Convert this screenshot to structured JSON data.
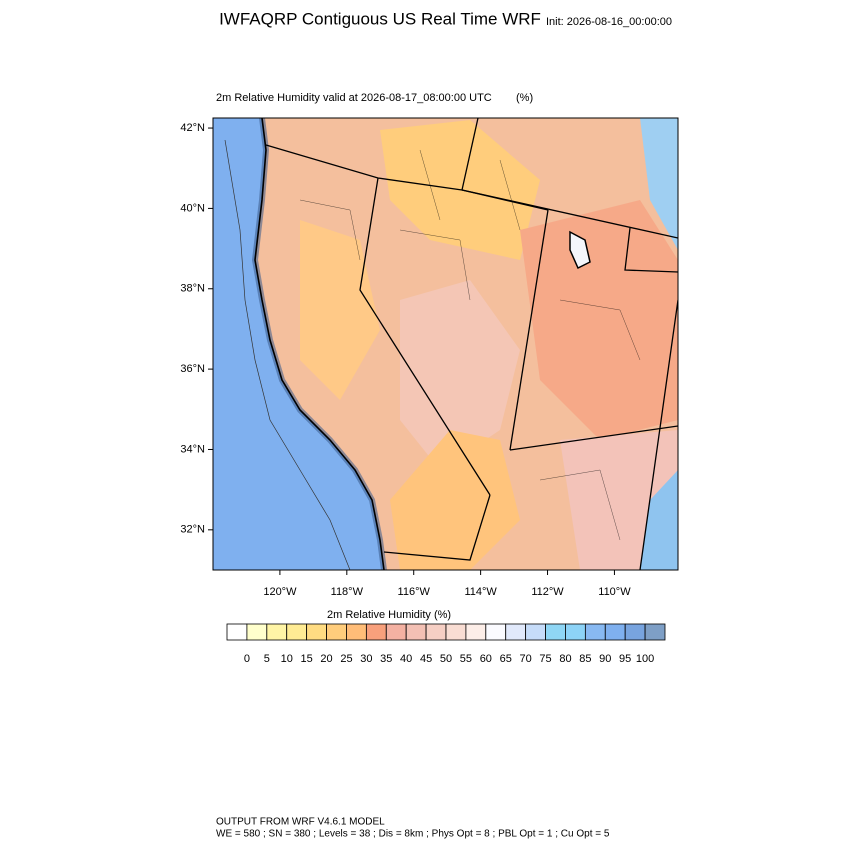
{
  "title": "IWFAQRP Contiguous US Real Time WRF",
  "init": "Init: 2026-08-16_00:00:00",
  "subtitle": "2m Relative Humidity valid at 2026-08-17_08:00:00 UTC",
  "units": "(%)",
  "map": {
    "lat_range": [
      31,
      42.25
    ],
    "lon_range": [
      -122,
      -108.1
    ],
    "lat_ticks": [
      {
        "value": 32,
        "label": "32°N"
      },
      {
        "value": 34,
        "label": "34°N"
      },
      {
        "value": 36,
        "label": "36°N"
      },
      {
        "value": 38,
        "label": "38°N"
      },
      {
        "value": 40,
        "label": "40°N"
      },
      {
        "value": 42,
        "label": "42°N"
      }
    ],
    "lon_ticks": [
      {
        "value": -120,
        "label": "120°W"
      },
      {
        "value": -118,
        "label": "118°W"
      },
      {
        "value": -116,
        "label": "116°W"
      },
      {
        "value": -114,
        "label": "114°W"
      },
      {
        "value": -112,
        "label": "112°W"
      },
      {
        "value": -110,
        "label": "110°W"
      }
    ]
  },
  "colorbar": {
    "title": "2m Relative Humidity  (%)",
    "levels": [
      0,
      5,
      10,
      15,
      20,
      25,
      30,
      35,
      40,
      45,
      50,
      55,
      60,
      65,
      70,
      75,
      80,
      85,
      90,
      95,
      100
    ],
    "colors": [
      "#ffffff",
      "#ffffcc",
      "#fff5a6",
      "#ffec94",
      "#ffdc82",
      "#ffcd7c",
      "#ffbd78",
      "#f8a07c",
      "#f4b1a2",
      "#f3c0b4",
      "#f6cfc4",
      "#f9ddd3",
      "#fdeee8",
      "#fbfbff",
      "#e1e9fb",
      "#c6dcf9",
      "#8fd6f5",
      "#8dd3f7",
      "#88b9f2",
      "#7fb0ef",
      "#78a4df",
      "#7e9fc6"
    ]
  },
  "footer": [
    "OUTPUT FROM WRF V4.6.1 MODEL",
    "WE = 580 ; SN = 380 ; Levels = 38 ; Dis = 8km ; Phys Opt = 8 ; PBL Opt = 1 ; Cu Opt = 5"
  ]
}
